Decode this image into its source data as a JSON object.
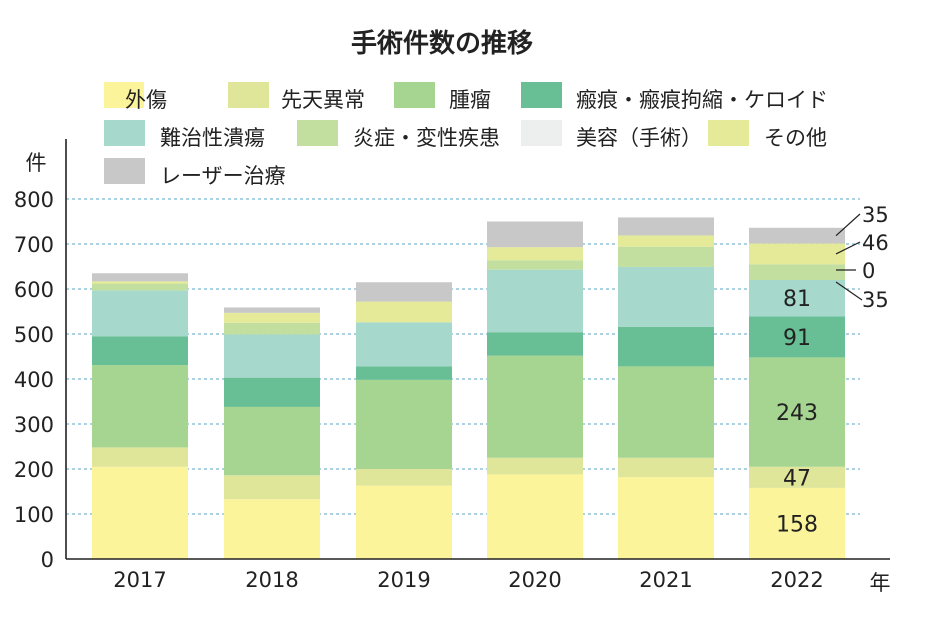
{
  "chart_data": {
    "type": "bar",
    "stacked": true,
    "title": "手術件数の推移",
    "ylabel": "件",
    "xlabel": "年",
    "ylim": [
      0,
      800
    ],
    "yticks": [
      0,
      100,
      200,
      300,
      400,
      500,
      600,
      700,
      800
    ],
    "grid": "horizontal dashed",
    "legend_position": "top",
    "categories": [
      "2017",
      "2018",
      "2019",
      "2020",
      "2021",
      "2022"
    ],
    "series": [
      {
        "name": "外傷",
        "color": "#fbf49b",
        "values": [
          205,
          133,
          163,
          188,
          182,
          158
        ]
      },
      {
        "name": "先天異常",
        "color": "#dfe69a",
        "values": [
          43,
          53,
          37,
          37,
          43,
          47
        ]
      },
      {
        "name": "腫瘤",
        "color": "#a6d491",
        "values": [
          183,
          152,
          198,
          227,
          203,
          243
        ]
      },
      {
        "name": "瘢痕・瘢痕拘縮・ケロイド",
        "color": "#68bf96",
        "values": [
          64,
          65,
          30,
          52,
          88,
          91
        ]
      },
      {
        "name": "難治性潰瘍",
        "color": "#a6d8cb",
        "values": [
          102,
          96,
          98,
          139,
          133,
          81
        ]
      },
      {
        "name": "炎症・変性疾患",
        "color": "#c3df9f",
        "values": [
          15,
          26,
          0,
          21,
          45,
          35
        ]
      },
      {
        "name": "美容（手術）",
        "color": "#ecefed",
        "values": [
          0,
          0,
          0,
          0,
          0,
          0
        ]
      },
      {
        "name": "その他",
        "color": "#e4ea97",
        "values": [
          5,
          22,
          46,
          29,
          25,
          46
        ]
      },
      {
        "name": "レーザー治療",
        "color": "#c8c8c8",
        "values": [
          18,
          12,
          43,
          57,
          40,
          35
        ]
      }
    ],
    "data_labels": {
      "category": "2022",
      "inside": [
        "158",
        "47",
        "243",
        "91",
        "81"
      ],
      "callouts": [
        "35",
        "46",
        "0",
        "35"
      ]
    }
  }
}
